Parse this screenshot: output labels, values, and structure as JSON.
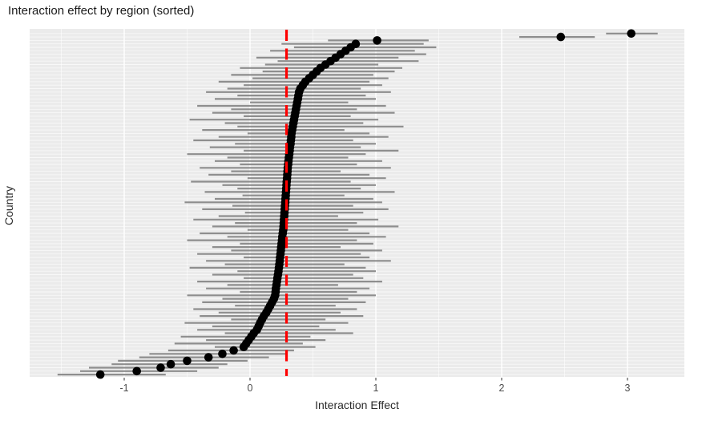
{
  "title": "Interaction effect by region (sorted)",
  "chart_data": {
    "type": "scatter",
    "subtype": "pointrange-forest-plot-horizontal",
    "title": "Interaction effect by region (sorted)",
    "xlabel": "Interaction Effect",
    "ylabel": "Country",
    "xlim": [
      -1.76,
      3.45
    ],
    "x_ticks": [
      -1,
      0,
      1,
      2,
      3
    ],
    "x_minor_ticks": [
      -1.5,
      -0.5,
      0.5,
      1.5,
      2.5
    ],
    "grid": "on",
    "legend": "none",
    "n_rows": 100,
    "y_axis_note": "100 unlabeled country rows, sorted by estimate descending top to bottom",
    "reference_line": {
      "x": 0.29,
      "style": "dashed",
      "color": "#ff0000"
    },
    "rows_format": [
      "estimate",
      "ci_low",
      "ci_high"
    ],
    "rows": [
      [
        3.03,
        2.83,
        3.24
      ],
      [
        2.47,
        2.14,
        2.74
      ],
      [
        1.01,
        0.62,
        1.42
      ],
      [
        0.84,
        0.25,
        1.38
      ],
      [
        0.8,
        0.35,
        1.48
      ],
      [
        0.76,
        0.16,
        1.31
      ],
      [
        0.72,
        0.3,
        1.4
      ],
      [
        0.68,
        0.05,
        1.18
      ],
      [
        0.64,
        0.22,
        1.34
      ],
      [
        0.6,
        0.12,
        1.02
      ],
      [
        0.56,
        -0.08,
        1.21
      ],
      [
        0.53,
        0.1,
        1.15
      ],
      [
        0.5,
        -0.15,
        0.98
      ],
      [
        0.47,
        0.02,
        1.1
      ],
      [
        0.44,
        -0.25,
        0.95
      ],
      [
        0.42,
        -0.05,
        1.05
      ],
      [
        0.4,
        -0.18,
        0.88
      ],
      [
        0.39,
        -0.35,
        1.12
      ],
      [
        0.385,
        -0.1,
        0.92
      ],
      [
        0.38,
        -0.28,
        1.0
      ],
      [
        0.375,
        0.0,
        0.78
      ],
      [
        0.37,
        -0.42,
        1.08
      ],
      [
        0.365,
        -0.15,
        0.85
      ],
      [
        0.36,
        -0.3,
        1.15
      ],
      [
        0.355,
        -0.05,
        0.8
      ],
      [
        0.35,
        -0.48,
        1.02
      ],
      [
        0.345,
        -0.2,
        0.9
      ],
      [
        0.34,
        -0.1,
        1.22
      ],
      [
        0.335,
        -0.38,
        0.75
      ],
      [
        0.33,
        -0.02,
        0.95
      ],
      [
        0.328,
        -0.25,
        1.1
      ],
      [
        0.325,
        -0.45,
        0.82
      ],
      [
        0.322,
        -0.12,
        1.0
      ],
      [
        0.318,
        -0.32,
        0.88
      ],
      [
        0.315,
        -0.05,
        1.18
      ],
      [
        0.312,
        -0.5,
        0.92
      ],
      [
        0.309,
        -0.18,
        0.78
      ],
      [
        0.306,
        -0.28,
        1.05
      ],
      [
        0.303,
        -0.08,
        0.85
      ],
      [
        0.3,
        -0.4,
        1.12
      ],
      [
        0.298,
        -0.15,
        0.72
      ],
      [
        0.296,
        -0.33,
        0.95
      ],
      [
        0.294,
        -0.02,
        1.08
      ],
      [
        0.292,
        -0.47,
        0.8
      ],
      [
        0.29,
        -0.22,
        1.0
      ],
      [
        0.288,
        -0.1,
        0.88
      ],
      [
        0.286,
        -0.36,
        1.15
      ],
      [
        0.284,
        -0.06,
        0.75
      ],
      [
        0.282,
        -0.28,
        0.98
      ],
      [
        0.28,
        -0.52,
        1.05
      ],
      [
        0.278,
        -0.14,
        0.82
      ],
      [
        0.276,
        -0.38,
        1.1
      ],
      [
        0.274,
        -0.04,
        0.9
      ],
      [
        0.272,
        -0.25,
        0.7
      ],
      [
        0.27,
        -0.45,
        1.02
      ],
      [
        0.268,
        -0.12,
        0.85
      ],
      [
        0.266,
        -0.3,
        1.18
      ],
      [
        0.264,
        -0.02,
        0.78
      ],
      [
        0.26,
        -0.4,
        0.95
      ],
      [
        0.257,
        -0.18,
        1.08
      ],
      [
        0.254,
        -0.5,
        0.85
      ],
      [
        0.251,
        -0.08,
        0.98
      ],
      [
        0.248,
        -0.3,
        0.72
      ],
      [
        0.245,
        -0.15,
        1.05
      ],
      [
        0.242,
        -0.42,
        0.88
      ],
      [
        0.239,
        -0.05,
        0.95
      ],
      [
        0.236,
        -0.35,
        1.12
      ],
      [
        0.233,
        -0.2,
        0.75
      ],
      [
        0.23,
        -0.48,
        0.92
      ],
      [
        0.226,
        -0.1,
        1.0
      ],
      [
        0.222,
        -0.3,
        0.82
      ],
      [
        0.218,
        -0.05,
        0.9
      ],
      [
        0.214,
        -0.42,
        1.05
      ],
      [
        0.21,
        -0.18,
        0.7
      ],
      [
        0.206,
        -0.35,
        0.95
      ],
      [
        0.203,
        -0.08,
        0.85
      ],
      [
        0.2,
        -0.5,
        1.0
      ],
      [
        0.19,
        -0.22,
        0.78
      ],
      [
        0.175,
        -0.38,
        0.92
      ],
      [
        0.16,
        -0.12,
        0.68
      ],
      [
        0.145,
        -0.45,
        0.85
      ],
      [
        0.13,
        -0.25,
        0.72
      ],
      [
        0.11,
        -0.4,
        0.9
      ],
      [
        0.095,
        -0.15,
        0.6
      ],
      [
        0.08,
        -0.52,
        0.78
      ],
      [
        0.068,
        -0.3,
        0.55
      ],
      [
        0.055,
        -0.42,
        0.68
      ],
      [
        0.03,
        -0.2,
        0.82
      ],
      [
        0.01,
        -0.55,
        0.48
      ],
      [
        -0.01,
        -0.35,
        0.6
      ],
      [
        -0.03,
        -0.6,
        0.42
      ],
      [
        -0.05,
        -0.28,
        0.52
      ],
      [
        -0.13,
        -0.65,
        0.35
      ],
      [
        -0.22,
        -0.8,
        0.28
      ],
      [
        -0.33,
        -0.88,
        0.15
      ],
      [
        -0.5,
        -1.05,
        -0.02
      ],
      [
        -0.63,
        -1.1,
        -0.18
      ],
      [
        -0.71,
        -1.28,
        -0.25
      ],
      [
        -0.9,
        -1.35,
        -0.42
      ],
      [
        -1.19,
        -1.53,
        -0.67
      ]
    ],
    "colors": {
      "panel_bg": "#ebebeb",
      "grid": "#ffffff",
      "error_bar": "#808080",
      "point": "#000000",
      "reference": "#ff0000",
      "tick_label": "#4d4d4d",
      "axis_title": "#2b2b2b",
      "title": "#1a1a1a"
    }
  }
}
